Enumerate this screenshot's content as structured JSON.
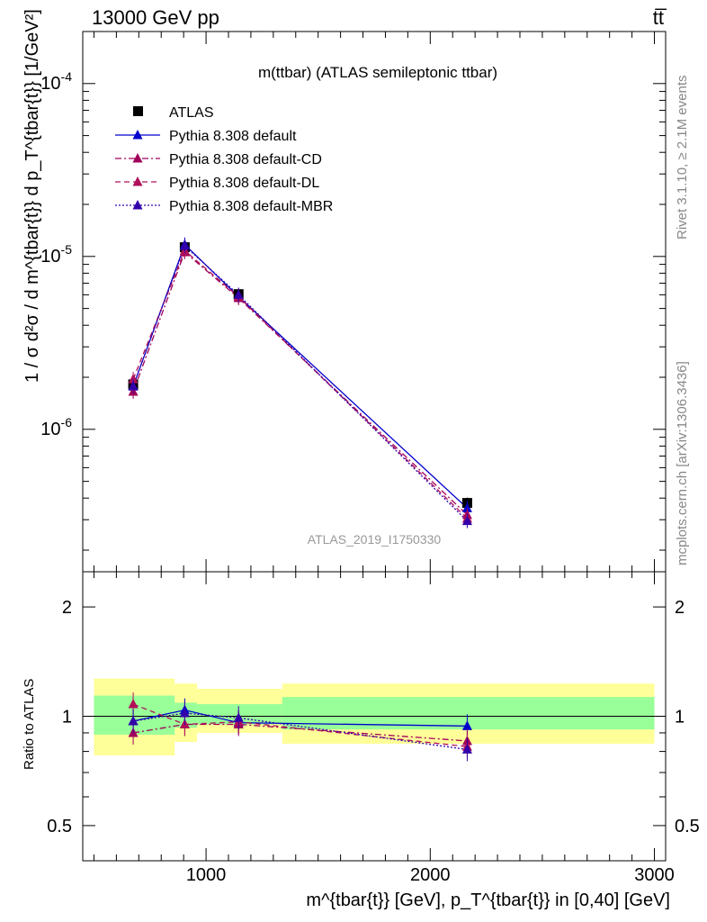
{
  "header": {
    "left": "13000 GeV pp",
    "right": "tt̅"
  },
  "side_labels": {
    "rivet": "Rivet 3.1.10, ≥ 2.1M events",
    "mcplots": "mcplots.cern.ch [arXiv:1306.3436]"
  },
  "watermark": "ATLAS_2019_I1750330",
  "chart_data": [
    {
      "type": "line",
      "panel": "main",
      "title": "m(ttbar) (ATLAS semileptonic ttbar)",
      "ylabel": "1 / σ d²σ / d m^{tbar{t}} d p_T^{tbar{t}} [1/GeV²]",
      "yscale": "log",
      "ylim": [
        1.5e-07,
        0.0002
      ],
      "xlim": [
        450,
        3050
      ],
      "y_tick_labels": [
        "10^-6",
        "10^-5",
        "10^-4"
      ],
      "legend_position": "top-left",
      "x": [
        675,
        905,
        1145,
        2165
      ],
      "series": [
        {
          "name": "ATLAS",
          "values": [
            1.82e-06,
            1.13e-05,
            6.05e-06,
            3.75e-07
          ],
          "color": "#000000",
          "marker": "square"
        },
        {
          "name": "Pythia 8.308 default",
          "values": [
            1.77e-06,
            1.17e-05,
            5.85e-06,
            3.5e-07
          ],
          "color": "#0000cc",
          "marker": "triangle",
          "dash": "solid"
        },
        {
          "name": "Pythia 8.308 default-CD",
          "values": [
            1.65e-06,
            1.06e-05,
            5.75e-06,
            3.2e-07
          ],
          "color": "#a0005a",
          "marker": "triangle",
          "dash": "dashdot"
        },
        {
          "name": "Pythia 8.308 default-DL",
          "values": [
            1.95e-06,
            1.08e-05,
            5.85e-06,
            3.05e-07
          ],
          "color": "#b0105a",
          "marker": "triangle",
          "dash": "dashed"
        },
        {
          "name": "Pythia 8.308 default-MBR",
          "values": [
            1.78e-06,
            1.15e-05,
            6e-06,
            2.95e-07
          ],
          "color": "#3300aa",
          "marker": "triangle",
          "dash": "dotted"
        }
      ]
    },
    {
      "type": "line",
      "panel": "ratio",
      "ylabel": "Ratio to ATLAS",
      "xlabel": "m^{tbar{t}} [GeV], p_T^{tbar{t}} in [0,40] [GeV]",
      "yscale": "log",
      "ylim": [
        0.4,
        2.5
      ],
      "xlim": [
        450,
        3050
      ],
      "y_tick_labels": [
        "0.5",
        "1",
        "2"
      ],
      "x_tick_labels": [
        "1000",
        "2000",
        "3000"
      ],
      "x": [
        675,
        905,
        1145,
        2165
      ],
      "bands": [
        {
          "xmin": 500,
          "xmax": 860,
          "yellow": [
            0.78,
            1.27
          ],
          "green": [
            0.89,
            1.14
          ]
        },
        {
          "xmin": 860,
          "xmax": 960,
          "yellow": [
            0.85,
            1.23
          ],
          "green": [
            0.93,
            1.09
          ]
        },
        {
          "xmin": 960,
          "xmax": 1340,
          "yellow": [
            0.9,
            1.19
          ],
          "green": [
            0.95,
            1.08
          ]
        },
        {
          "xmin": 1340,
          "xmax": 3000,
          "yellow": [
            0.84,
            1.23
          ],
          "green": [
            0.92,
            1.13
          ]
        }
      ],
      "series": [
        {
          "name": "Pythia 8.308 default",
          "values": [
            0.97,
            1.04,
            0.96,
            0.94
          ],
          "color": "#0000cc",
          "marker": "triangle",
          "dash": "solid"
        },
        {
          "name": "Pythia 8.308 default-CD",
          "values": [
            0.9,
            0.95,
            0.95,
            0.855
          ],
          "color": "#a0005a",
          "marker": "triangle",
          "dash": "dashdot"
        },
        {
          "name": "Pythia 8.308 default-DL",
          "values": [
            1.08,
            0.95,
            0.965,
            0.825
          ],
          "color": "#b0105a",
          "marker": "triangle",
          "dash": "dashed"
        },
        {
          "name": "Pythia 8.308 default-MBR",
          "values": [
            0.97,
            1.02,
            0.99,
            0.81
          ],
          "color": "#3300aa",
          "marker": "triangle",
          "dash": "dotted"
        }
      ]
    }
  ]
}
